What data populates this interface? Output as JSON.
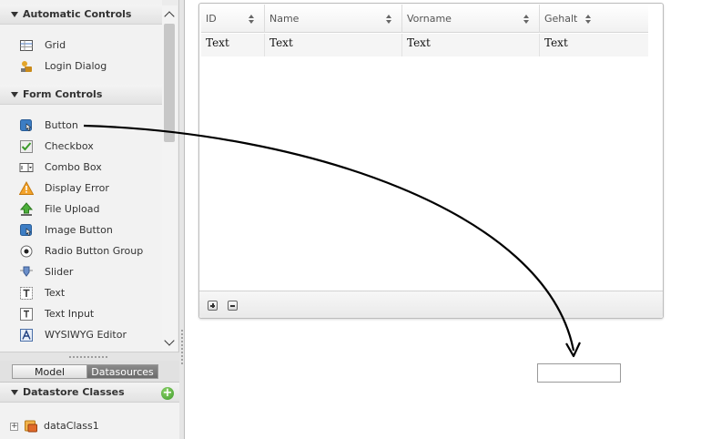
{
  "sidebar": {
    "sections": [
      {
        "label": "Automatic Controls",
        "items": [
          {
            "label": "Grid",
            "icon": "grid-icon"
          },
          {
            "label": "Login Dialog",
            "icon": "login-dialog-icon"
          }
        ]
      },
      {
        "label": "Form Controls",
        "items": [
          {
            "label": "Button",
            "icon": "button-icon"
          },
          {
            "label": "Checkbox",
            "icon": "checkbox-icon"
          },
          {
            "label": "Combo Box",
            "icon": "combo-box-icon"
          },
          {
            "label": "Display Error",
            "icon": "warning-icon"
          },
          {
            "label": "File Upload",
            "icon": "file-upload-icon"
          },
          {
            "label": "Image Button",
            "icon": "image-button-icon"
          },
          {
            "label": "Radio Button Group",
            "icon": "radio-button-icon"
          },
          {
            "label": "Slider",
            "icon": "slider-icon"
          },
          {
            "label": "Text",
            "icon": "text-icon"
          },
          {
            "label": "Text Input",
            "icon": "text-input-icon"
          },
          {
            "label": "WYSIWYG Editor",
            "icon": "wysiwyg-editor-icon"
          }
        ]
      }
    ]
  },
  "tabs": {
    "model": "Model",
    "datasources": "Datasources",
    "active": "Datasources"
  },
  "datastore": {
    "header": "Datastore Classes",
    "classes": [
      {
        "label": "dataClass1"
      }
    ]
  },
  "grid": {
    "columns": [
      "ID",
      "Name",
      "Vorname",
      "Gehalt"
    ],
    "rows": [
      [
        "Text",
        "Text",
        "Text",
        "Text"
      ]
    ]
  },
  "colors": {
    "panel_bg": "#ececec",
    "tab_active": "#737373",
    "add_green": "#4caf3a",
    "arrow": "#000000"
  }
}
